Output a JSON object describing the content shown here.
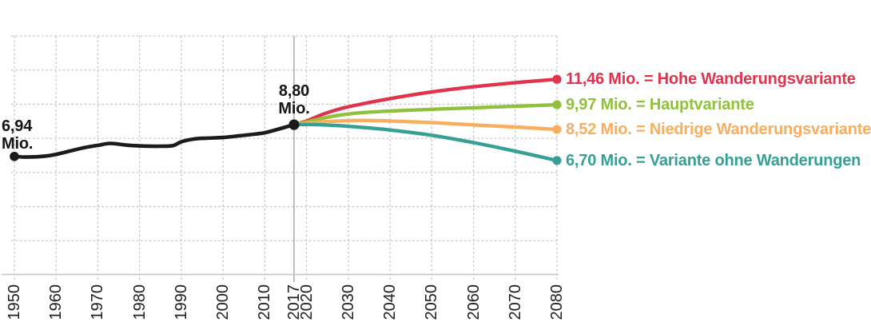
{
  "chart_data": {
    "type": "line",
    "title": "",
    "xlabel": "",
    "ylabel": "",
    "x_axis": {
      "range": [
        1950,
        2080
      ],
      "ticks": [
        {
          "label": "1950",
          "year": 1950
        },
        {
          "label": "1960",
          "year": 1960
        },
        {
          "label": "1970",
          "year": 1970
        },
        {
          "label": "1980",
          "year": 1980
        },
        {
          "label": "1990",
          "year": 1990
        },
        {
          "label": "2000",
          "year": 2000
        },
        {
          "label": "2010",
          "year": 2010
        },
        {
          "label": "2017",
          "year": 2017
        },
        {
          "label": "2020",
          "year": 2020
        },
        {
          "label": "2030",
          "year": 2030
        },
        {
          "label": "2040",
          "year": 2040
        },
        {
          "label": "2050",
          "year": 2050
        },
        {
          "label": "2060",
          "year": 2060
        },
        {
          "label": "2070",
          "year": 2070
        },
        {
          "label": "2080",
          "year": 2080
        }
      ]
    },
    "y_axis": {
      "range": [
        0,
        14
      ],
      "grid_step": 2,
      "labels_visible": false,
      "unit": "Mio."
    },
    "grid": {
      "style": "dashed",
      "color": "#c5c5c5"
    },
    "axis_color": "#c9c9c9",
    "pivot_year": 2017,
    "pivot_line_color": "#a2a2a2",
    "historical": {
      "id": "historical",
      "color": "#1b1b1b",
      "points": [
        [
          1950,
          6.94
        ],
        [
          1953,
          6.9
        ],
        [
          1957,
          6.95
        ],
        [
          1960,
          7.06
        ],
        [
          1964,
          7.3
        ],
        [
          1967,
          7.47
        ],
        [
          1970,
          7.59
        ],
        [
          1973,
          7.7
        ],
        [
          1977,
          7.6
        ],
        [
          1981,
          7.55
        ],
        [
          1985,
          7.54
        ],
        [
          1988,
          7.57
        ],
        [
          1990,
          7.8
        ],
        [
          1993,
          7.96
        ],
        [
          1996,
          8.01
        ],
        [
          2000,
          8.05
        ],
        [
          2004,
          8.15
        ],
        [
          2008,
          8.26
        ],
        [
          2010,
          8.33
        ],
        [
          2013,
          8.52
        ],
        [
          2015,
          8.66
        ],
        [
          2017,
          8.8
        ]
      ]
    },
    "series": [
      {
        "id": "hohe",
        "label": "11,46 Mio. = Hohe Wanderungsvariante",
        "end_value": 11.46,
        "color": "#e0344e",
        "points": [
          [
            2017,
            8.8
          ],
          [
            2020,
            9.02
          ],
          [
            2024,
            9.42
          ],
          [
            2028,
            9.73
          ],
          [
            2033,
            10.0
          ],
          [
            2040,
            10.33
          ],
          [
            2050,
            10.72
          ],
          [
            2060,
            11.02
          ],
          [
            2070,
            11.26
          ],
          [
            2080,
            11.46
          ]
        ]
      },
      {
        "id": "haupt",
        "label": "9,97 Mio. = Hauptvariante",
        "end_value": 9.97,
        "color": "#90c03c",
        "points": [
          [
            2017,
            8.8
          ],
          [
            2020,
            8.96
          ],
          [
            2024,
            9.18
          ],
          [
            2028,
            9.36
          ],
          [
            2033,
            9.5
          ],
          [
            2040,
            9.6
          ],
          [
            2050,
            9.7
          ],
          [
            2060,
            9.79
          ],
          [
            2070,
            9.88
          ],
          [
            2080,
            9.97
          ]
        ]
      },
      {
        "id": "niedrig",
        "label": "8,52 Mio. = Niedrige Wanderungsvariante",
        "end_value": 8.52,
        "color": "#f8ae5e",
        "points": [
          [
            2017,
            8.8
          ],
          [
            2020,
            8.88
          ],
          [
            2024,
            8.97
          ],
          [
            2028,
            9.02
          ],
          [
            2033,
            9.05
          ],
          [
            2040,
            9.02
          ],
          [
            2050,
            8.92
          ],
          [
            2060,
            8.79
          ],
          [
            2070,
            8.66
          ],
          [
            2080,
            8.52
          ]
        ]
      },
      {
        "id": "ohne",
        "label": "6,70 Mio. = Variante ohne Wanderungen",
        "end_value": 6.7,
        "color": "#35a093",
        "points": [
          [
            2017,
            8.8
          ],
          [
            2020,
            8.81
          ],
          [
            2024,
            8.79
          ],
          [
            2028,
            8.74
          ],
          [
            2033,
            8.65
          ],
          [
            2040,
            8.49
          ],
          [
            2050,
            8.18
          ],
          [
            2060,
            7.75
          ],
          [
            2070,
            7.25
          ],
          [
            2080,
            6.7
          ]
        ]
      }
    ],
    "annotations": {
      "start": {
        "value": "6,94",
        "unit": "Mio.",
        "year": 1950,
        "point_value": 6.94
      },
      "pivot": {
        "value": "8,80",
        "unit": "Mio.",
        "year": 2017,
        "point_value": 8.8
      }
    }
  }
}
